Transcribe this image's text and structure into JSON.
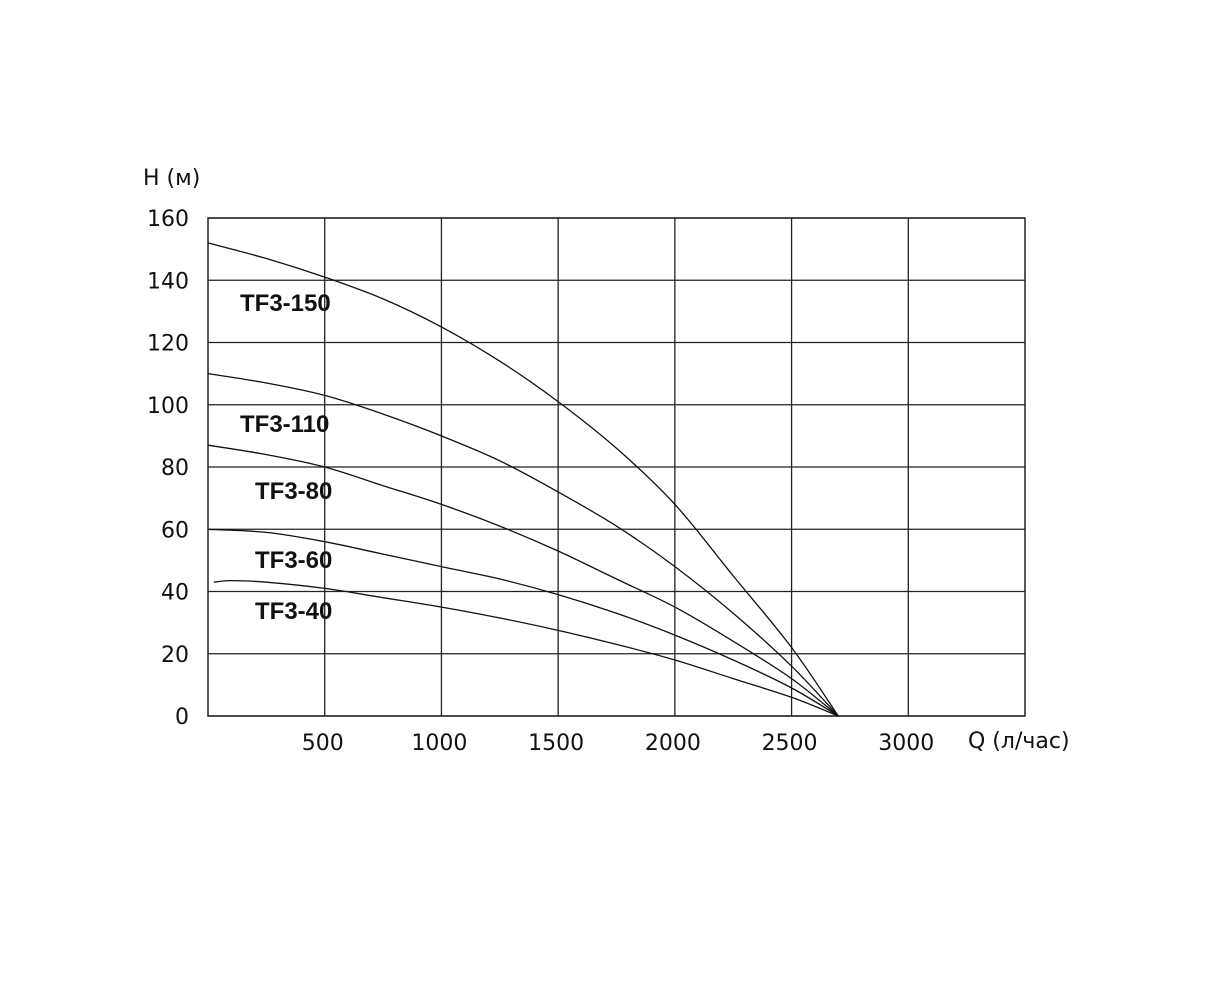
{
  "chart_data": {
    "type": "line",
    "xlabel": "Q (л/час)",
    "ylabel": "H (м)",
    "xlim": [
      0,
      3500
    ],
    "ylim": [
      0,
      160
    ],
    "xticks": [
      500,
      1000,
      1500,
      2000,
      2500,
      3000
    ],
    "yticks": [
      0,
      20,
      40,
      60,
      80,
      100,
      120,
      140,
      160
    ],
    "grid": true,
    "series": [
      {
        "name": "TF3-150",
        "x": [
          0,
          250,
          500,
          750,
          1000,
          1250,
          1500,
          1750,
          2000,
          2250,
          2500,
          2700
        ],
        "y": [
          152,
          147,
          141,
          134,
          125,
          114,
          101,
          86,
          68,
          45,
          22,
          0
        ]
      },
      {
        "name": "TF3-110",
        "x": [
          0,
          250,
          500,
          750,
          1000,
          1250,
          1500,
          1750,
          2000,
          2250,
          2500,
          2700
        ],
        "y": [
          110,
          107,
          103,
          97,
          90,
          82,
          72,
          61,
          48,
          33,
          16,
          0
        ]
      },
      {
        "name": "TF3-80",
        "x": [
          0,
          250,
          500,
          750,
          1000,
          1250,
          1500,
          1750,
          2000,
          2250,
          2500,
          2700
        ],
        "y": [
          87,
          84,
          80,
          74,
          68,
          61,
          53,
          44,
          35,
          24,
          12,
          0
        ]
      },
      {
        "name": "TF3-60",
        "x": [
          0,
          250,
          500,
          750,
          1000,
          1250,
          1500,
          1750,
          2000,
          2250,
          2500,
          2700
        ],
        "y": [
          60,
          59,
          56,
          52,
          48,
          44,
          39,
          33,
          26,
          18,
          9,
          0
        ]
      },
      {
        "name": "TF3-40",
        "x": [
          25,
          100,
          250,
          500,
          750,
          1000,
          1250,
          1500,
          1750,
          2000,
          2250,
          2500,
          2700
        ],
        "y": [
          43,
          43.5,
          43,
          41,
          38,
          35,
          31.5,
          27.5,
          23,
          18,
          12,
          6,
          0
        ]
      }
    ]
  }
}
